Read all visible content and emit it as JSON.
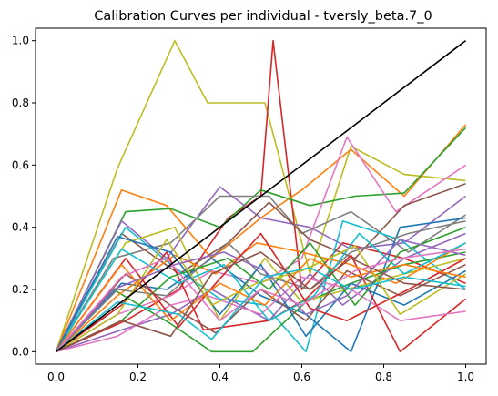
{
  "chart_data": {
    "type": "line",
    "title": "Calibration Curves per individual - tversly_beta.7_0",
    "xlabel": "",
    "ylabel": "",
    "xlim": [
      -0.05,
      1.05
    ],
    "ylim": [
      -0.04,
      1.04
    ],
    "xticks": [
      "0.0",
      "0.2",
      "0.4",
      "0.6",
      "0.8",
      "1.0"
    ],
    "yticks": [
      "0.0",
      "0.2",
      "0.4",
      "0.6",
      "0.8",
      "1.0"
    ],
    "grid": false,
    "legend": "none",
    "palette": [
      "#1f77b4",
      "#ff7f0e",
      "#2ca02c",
      "#d62728",
      "#9467bd",
      "#8c564b",
      "#e377c2",
      "#7f7f7f",
      "#bcbd22",
      "#17becf"
    ],
    "reference": {
      "color": "#000000",
      "x": [
        0,
        1
      ],
      "y": [
        0,
        1
      ]
    },
    "series": [
      {
        "color": "#bcbd22",
        "x": [
          0,
          0.15,
          0.29,
          0.37,
          0.51,
          0.62,
          0.72,
          0.85,
          1.0
        ],
        "y": [
          0,
          0.59,
          1.0,
          0.8,
          0.8,
          0.25,
          0.66,
          0.57,
          0.55
        ]
      },
      {
        "color": "#d62728",
        "x": [
          0,
          0.17,
          0.3,
          0.42,
          0.5,
          0.53,
          0.6,
          0.7,
          0.85,
          1.0
        ],
        "y": [
          0,
          0.1,
          0.2,
          0.43,
          0.5,
          1.0,
          0.2,
          0.35,
          0.3,
          0.22
        ]
      },
      {
        "color": "#ff7f0e",
        "x": [
          0,
          0.16,
          0.27,
          0.38,
          0.5,
          0.6,
          0.72,
          0.85,
          1.0
        ],
        "y": [
          0,
          0.52,
          0.47,
          0.3,
          0.43,
          0.52,
          0.65,
          0.5,
          0.73
        ]
      },
      {
        "color": "#2ca02c",
        "x": [
          0,
          0.17,
          0.28,
          0.4,
          0.5,
          0.62,
          0.73,
          0.85,
          1.0
        ],
        "y": [
          0,
          0.45,
          0.46,
          0.4,
          0.52,
          0.47,
          0.5,
          0.51,
          0.72
        ]
      },
      {
        "color": "#e377c2",
        "x": [
          0,
          0.15,
          0.28,
          0.38,
          0.5,
          0.6,
          0.71,
          0.83,
          1.0
        ],
        "y": [
          0,
          0.12,
          0.18,
          0.26,
          0.22,
          0.3,
          0.69,
          0.45,
          0.6
        ]
      },
      {
        "color": "#9467bd",
        "x": [
          0,
          0.16,
          0.27,
          0.4,
          0.5,
          0.62,
          0.72,
          0.85,
          1.0
        ],
        "y": [
          0,
          0.42,
          0.3,
          0.53,
          0.43,
          0.4,
          0.33,
          0.35,
          0.5
        ]
      },
      {
        "color": "#7f7f7f",
        "x": [
          0,
          0.14,
          0.28,
          0.4,
          0.52,
          0.6,
          0.72,
          0.86,
          1.0
        ],
        "y": [
          0,
          0.3,
          0.35,
          0.5,
          0.5,
          0.38,
          0.45,
          0.32,
          0.44
        ]
      },
      {
        "color": "#8c564b",
        "x": [
          0,
          0.16,
          0.3,
          0.42,
          0.52,
          0.62,
          0.73,
          0.85,
          1.0
        ],
        "y": [
          0,
          0.38,
          0.25,
          0.35,
          0.48,
          0.36,
          0.3,
          0.47,
          0.54
        ]
      },
      {
        "color": "#17becf",
        "x": [
          0,
          0.17,
          0.29,
          0.4,
          0.51,
          0.61,
          0.7,
          0.84,
          1.0
        ],
        "y": [
          0,
          0.4,
          0.27,
          0.17,
          0.15,
          0.0,
          0.42,
          0.36,
          0.2
        ]
      },
      {
        "color": "#1f77b4",
        "x": [
          0,
          0.16,
          0.27,
          0.38,
          0.5,
          0.61,
          0.72,
          0.84,
          1.0
        ],
        "y": [
          0,
          0.22,
          0.2,
          0.3,
          0.18,
          0.12,
          0.0,
          0.4,
          0.43
        ]
      },
      {
        "color": "#2ca02c",
        "x": [
          0,
          0.14,
          0.28,
          0.38,
          0.48,
          0.61,
          0.72,
          0.85,
          1.0
        ],
        "y": [
          0,
          0.2,
          0.09,
          0.0,
          0.0,
          0.16,
          0.22,
          0.28,
          0.32
        ]
      },
      {
        "color": "#d62728",
        "x": [
          0,
          0.16,
          0.27,
          0.36,
          0.52,
          0.61,
          0.72,
          0.84,
          1.0
        ],
        "y": [
          0,
          0.15,
          0.32,
          0.07,
          0.1,
          0.17,
          0.31,
          0.0,
          0.17
        ]
      },
      {
        "color": "#bcbd22",
        "x": [
          0,
          0.17,
          0.29,
          0.4,
          0.51,
          0.6,
          0.71,
          0.85,
          1.0
        ],
        "y": [
          0,
          0.35,
          0.4,
          0.1,
          0.3,
          0.16,
          0.2,
          0.25,
          0.3
        ]
      },
      {
        "color": "#ff7f0e",
        "x": [
          0,
          0.15,
          0.29,
          0.39,
          0.49,
          0.6,
          0.72,
          0.83,
          1.0
        ],
        "y": [
          0,
          0.18,
          0.31,
          0.25,
          0.35,
          0.32,
          0.28,
          0.22,
          0.35
        ]
      },
      {
        "color": "#9467bd",
        "x": [
          0,
          0.16,
          0.28,
          0.38,
          0.52,
          0.62,
          0.7,
          0.85,
          1.0
        ],
        "y": [
          0,
          0.07,
          0.12,
          0.2,
          0.1,
          0.25,
          0.15,
          0.3,
          0.38
        ]
      },
      {
        "color": "#7f7f7f",
        "x": [
          0,
          0.15,
          0.27,
          0.42,
          0.5,
          0.62,
          0.72,
          0.86,
          1.0
        ],
        "y": [
          0,
          0.2,
          0.18,
          0.35,
          0.25,
          0.2,
          0.32,
          0.38,
          0.42
        ]
      },
      {
        "color": "#8c564b",
        "x": [
          0,
          0.17,
          0.29,
          0.39,
          0.5,
          0.61,
          0.71,
          0.84,
          1.0
        ],
        "y": [
          0,
          0.25,
          0.14,
          0.06,
          0.2,
          0.1,
          0.26,
          0.18,
          0.28
        ]
      },
      {
        "color": "#e377c2",
        "x": [
          0,
          0.15,
          0.28,
          0.37,
          0.5,
          0.6,
          0.72,
          0.84,
          1.0
        ],
        "y": [
          0,
          0.05,
          0.15,
          0.18,
          0.12,
          0.24,
          0.2,
          0.1,
          0.13
        ]
      },
      {
        "color": "#17becf",
        "x": [
          0,
          0.16,
          0.3,
          0.41,
          0.52,
          0.63,
          0.74,
          0.85,
          1.0
        ],
        "y": [
          0,
          0.33,
          0.22,
          0.28,
          0.1,
          0.18,
          0.38,
          0.25,
          0.35
        ]
      },
      {
        "color": "#1f77b4",
        "x": [
          0,
          0.15,
          0.28,
          0.4,
          0.5,
          0.61,
          0.72,
          0.85,
          1.0
        ],
        "y": [
          0,
          0.37,
          0.32,
          0.12,
          0.28,
          0.05,
          0.22,
          0.15,
          0.26
        ]
      },
      {
        "color": "#2ca02c",
        "x": [
          0,
          0.16,
          0.28,
          0.42,
          0.52,
          0.62,
          0.73,
          0.84,
          1.0
        ],
        "y": [
          0,
          0.1,
          0.24,
          0.3,
          0.2,
          0.35,
          0.15,
          0.32,
          0.4
        ]
      },
      {
        "color": "#d62728",
        "x": [
          0,
          0.17,
          0.3,
          0.39,
          0.5,
          0.62,
          0.71,
          0.86,
          1.0
        ],
        "y": [
          0,
          0.3,
          0.08,
          0.22,
          0.38,
          0.14,
          0.1,
          0.2,
          0.3
        ]
      },
      {
        "color": "#bcbd22",
        "x": [
          0,
          0.15,
          0.27,
          0.38,
          0.49,
          0.6,
          0.73,
          0.84,
          1.0
        ],
        "y": [
          0,
          0.12,
          0.36,
          0.15,
          0.22,
          0.26,
          0.34,
          0.12,
          0.25
        ]
      },
      {
        "color": "#ff7f0e",
        "x": [
          0,
          0.16,
          0.28,
          0.4,
          0.51,
          0.62,
          0.72,
          0.85,
          1.0
        ],
        "y": [
          0,
          0.28,
          0.1,
          0.22,
          0.15,
          0.3,
          0.24,
          0.28,
          0.24
        ]
      },
      {
        "color": "#9467bd",
        "x": [
          0,
          0.14,
          0.29,
          0.41,
          0.51,
          0.61,
          0.71,
          0.84,
          1.0
        ],
        "y": [
          0,
          0.2,
          0.28,
          0.32,
          0.26,
          0.12,
          0.18,
          0.36,
          0.31
        ]
      },
      {
        "color": "#8c564b",
        "x": [
          0,
          0.16,
          0.28,
          0.38,
          0.5,
          0.62,
          0.72,
          0.85,
          1.0
        ],
        "y": [
          0,
          0.1,
          0.05,
          0.25,
          0.32,
          0.2,
          0.3,
          0.22,
          0.2
        ]
      },
      {
        "color": "#e377c2",
        "x": [
          0,
          0.16,
          0.27,
          0.4,
          0.5,
          0.6,
          0.73,
          0.84,
          1.0
        ],
        "y": [
          0,
          0.24,
          0.3,
          0.1,
          0.2,
          0.15,
          0.26,
          0.3,
          0.33
        ]
      },
      {
        "color": "#17becf",
        "x": [
          0,
          0.15,
          0.3,
          0.38,
          0.51,
          0.62,
          0.72,
          0.85,
          1.0
        ],
        "y": [
          0,
          0.16,
          0.12,
          0.04,
          0.24,
          0.27,
          0.2,
          0.24,
          0.21
        ]
      }
    ]
  }
}
